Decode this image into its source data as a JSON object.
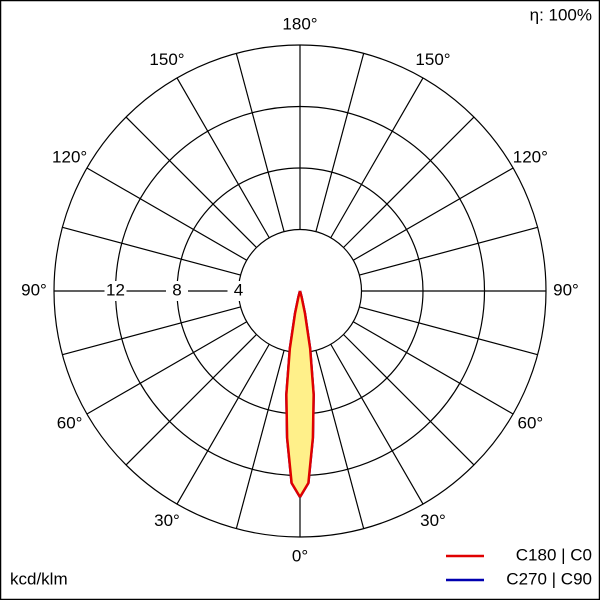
{
  "chart_data": {
    "type": "polar",
    "efficiency": "η: 100%",
    "unit_label": "kcd/klm",
    "x": [
      0,
      2.5,
      5,
      7.5,
      10,
      12.5,
      15,
      20
    ],
    "series": [
      {
        "name": "C270 | C90",
        "color": "#0000b0",
        "values": [
          13.4,
          12.5,
          9.6,
          6.8,
          3.8,
          1.5,
          0.4,
          0
        ]
      },
      {
        "name": "C180 | C0",
        "color": "#e00000",
        "fill": "#fff08a",
        "values": [
          13.4,
          12.5,
          9.6,
          6.8,
          3.8,
          1.5,
          0.4,
          0
        ]
      }
    ],
    "ylim": [
      0,
      16
    ],
    "yticks": [
      4,
      8,
      12
    ],
    "xticks": [
      {
        "value": 0,
        "label": "0°"
      },
      {
        "value": 30,
        "label": "30°"
      },
      {
        "value": 60,
        "label": "60°"
      },
      {
        "value": 90,
        "label": "90°"
      },
      {
        "value": 120,
        "label": "120°"
      },
      {
        "value": 150,
        "label": "150°"
      },
      {
        "value": 180,
        "label": "180°"
      }
    ],
    "x_minor_ticks": [
      15,
      45,
      75,
      105,
      135,
      165
    ]
  }
}
